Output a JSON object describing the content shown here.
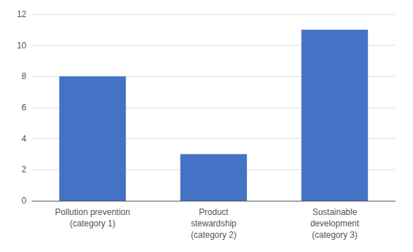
{
  "chart_data": {
    "type": "bar",
    "categories": [
      "Pollution prevention\n(category 1)",
      "Product\nstewardship\n(category 2)",
      "Sustainable\ndevelopment\n(category 3)"
    ],
    "values": [
      8,
      3,
      11
    ],
    "color": "#4472C4",
    "ylim": [
      0,
      12
    ],
    "yticks": [
      0,
      2,
      4,
      6,
      8,
      10,
      12
    ],
    "grid": true
  }
}
